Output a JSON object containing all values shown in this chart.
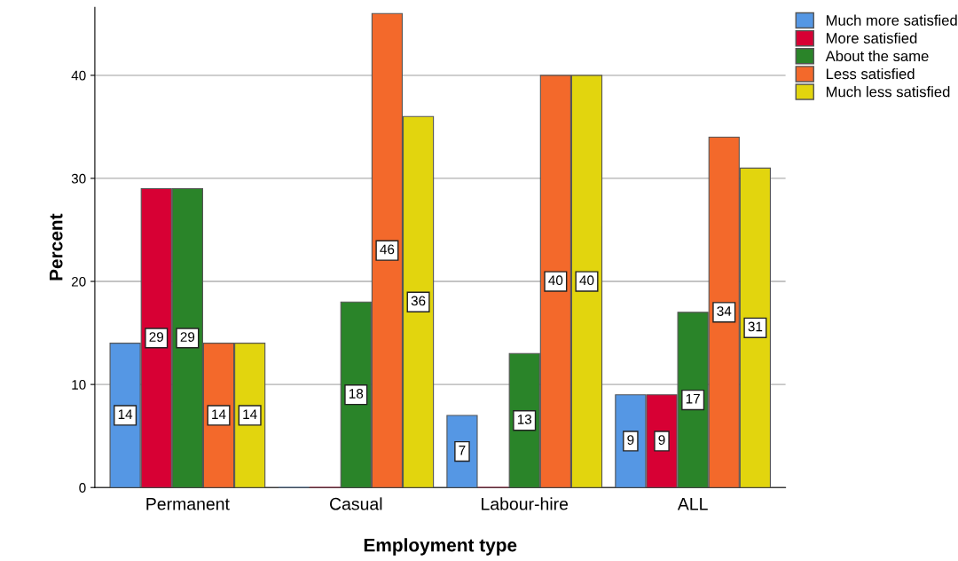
{
  "chart_data": {
    "type": "bar",
    "xlabel": "Employment type",
    "ylabel": "Percent",
    "categories": [
      "Permanent",
      "Casual",
      "Labour-hire",
      "ALL"
    ],
    "series": [
      {
        "name": "Much more satisfied",
        "color": "#5597e4",
        "values": [
          14,
          0,
          7,
          9
        ],
        "value_labels": [
          "14",
          null,
          "7",
          "9"
        ]
      },
      {
        "name": "More satisfied",
        "color": "#d70034",
        "values": [
          29,
          0,
          0,
          9
        ],
        "value_labels": [
          "29",
          null,
          null,
          "9"
        ]
      },
      {
        "name": "About the same",
        "color": "#2a8429",
        "values": [
          29,
          18,
          13,
          17
        ],
        "value_labels": [
          "29",
          "18",
          "13",
          "17"
        ]
      },
      {
        "name": "Less satisfied",
        "color": "#f3692b",
        "values": [
          14,
          46,
          40,
          34
        ],
        "value_labels": [
          "14",
          "46",
          "40",
          "34"
        ]
      },
      {
        "name": "Much less satisfied",
        "color": "#e2d50e",
        "values": [
          14,
          36,
          40,
          31
        ],
        "value_labels": [
          "14",
          "36",
          "40",
          "31"
        ]
      }
    ],
    "ylim": [
      0,
      46.6
    ],
    "yticks": [
      0,
      10,
      20,
      30,
      40
    ],
    "grid": "y",
    "legend": "top right"
  }
}
